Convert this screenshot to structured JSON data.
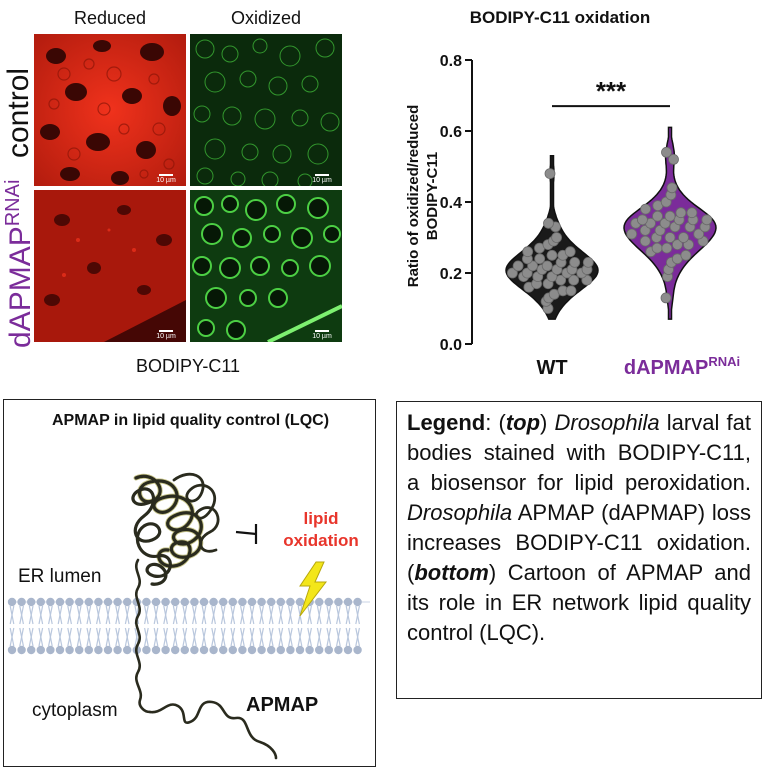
{
  "microscopy": {
    "col_reduced": "Reduced",
    "col_oxidized": "Oxidized",
    "row_control": "control",
    "row_rnai_main": "dAPMAP",
    "row_rnai_sup": "RNAi",
    "scale_label": "10 µm",
    "caption": "BODIPY-C11",
    "colors": {
      "reduced": "#d42a16",
      "oxidized": "#2fa82a",
      "rnai_label": "#7b2c9a"
    }
  },
  "chart_data": {
    "type": "violin",
    "title": "BODIPY-C11 oxidation",
    "ylabel_line1": "Ratio of oxidized/reduced",
    "ylabel_line2": "BODIPY-C11",
    "ylim": [
      0.0,
      0.8
    ],
    "yticks": [
      0.0,
      0.2,
      0.4,
      0.6,
      0.8
    ],
    "ytick_labels": [
      "0.0",
      "0.2",
      "0.4",
      "0.6",
      "0.8"
    ],
    "significance": "***",
    "categories": [
      "WT",
      "dAPMAP"
    ],
    "category_sup": [
      "",
      "RNAi"
    ],
    "series": [
      {
        "category": "WT",
        "fill_color": "#1a1a1a",
        "label_color": "#111111",
        "min": 0.07,
        "max": 0.53,
        "points": [
          0.1,
          0.12,
          0.13,
          0.14,
          0.15,
          0.15,
          0.16,
          0.17,
          0.17,
          0.18,
          0.18,
          0.18,
          0.19,
          0.19,
          0.19,
          0.2,
          0.2,
          0.2,
          0.2,
          0.21,
          0.21,
          0.21,
          0.21,
          0.22,
          0.22,
          0.22,
          0.23,
          0.23,
          0.23,
          0.24,
          0.24,
          0.25,
          0.25,
          0.26,
          0.26,
          0.27,
          0.28,
          0.29,
          0.3,
          0.33,
          0.34,
          0.48
        ]
      },
      {
        "category": "dAPMAP",
        "fill_color": "#7b2c9a",
        "label_color": "#7b2c9a",
        "min": 0.07,
        "max": 0.61,
        "points": [
          0.13,
          0.19,
          0.21,
          0.23,
          0.24,
          0.25,
          0.26,
          0.27,
          0.27,
          0.28,
          0.28,
          0.29,
          0.29,
          0.3,
          0.3,
          0.3,
          0.31,
          0.31,
          0.32,
          0.32,
          0.33,
          0.33,
          0.33,
          0.34,
          0.34,
          0.34,
          0.35,
          0.35,
          0.35,
          0.35,
          0.36,
          0.36,
          0.37,
          0.37,
          0.38,
          0.39,
          0.4,
          0.42,
          0.44,
          0.52,
          0.54
        ]
      }
    ]
  },
  "cartoon": {
    "title": "APMAP in lipid quality control (LQC)",
    "er_lumen": "ER lumen",
    "cytoplasm": "cytoplasm",
    "protein": "APMAP",
    "lipid": "lipid",
    "oxidation": "oxidation",
    "colors": {
      "lipid_ox": "#e8352b",
      "bolt": "#f3e61a",
      "membrane": "#b9c7dd"
    }
  },
  "legend": {
    "title": "Legend",
    "t1": ": (",
    "top": "top",
    "t2": ") ",
    "drosophila1": "Drosophila",
    "t3": " larval fat bodies stained with BODIPY-C11, a biosensor for lipid peroxidation. ",
    "drosophila2": "Drosophila",
    "t4": " APMAP (dAPMAP) loss increases BODIPY-C11 oxidation. (",
    "bottom": "bottom",
    "t5": ") Cartoon of APMAP and its role in ER network lipid quality control (LQC)."
  }
}
